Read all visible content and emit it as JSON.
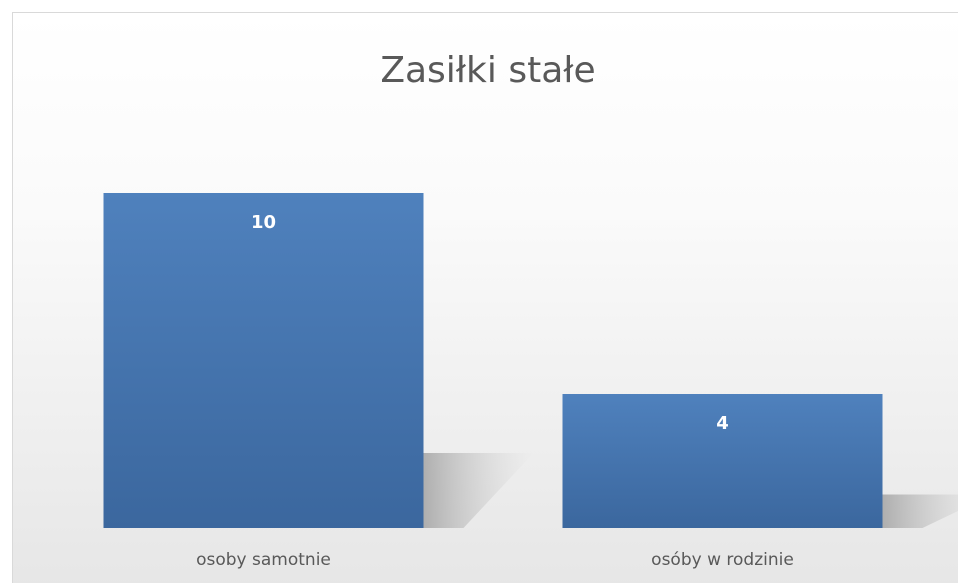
{
  "chart_data": {
    "type": "bar",
    "title": "Zasiłki stałe",
    "categories": [
      "osoby samotnie",
      "osóby w rodzinie"
    ],
    "values": [
      10,
      4
    ],
    "color": "#4a7ab8"
  }
}
